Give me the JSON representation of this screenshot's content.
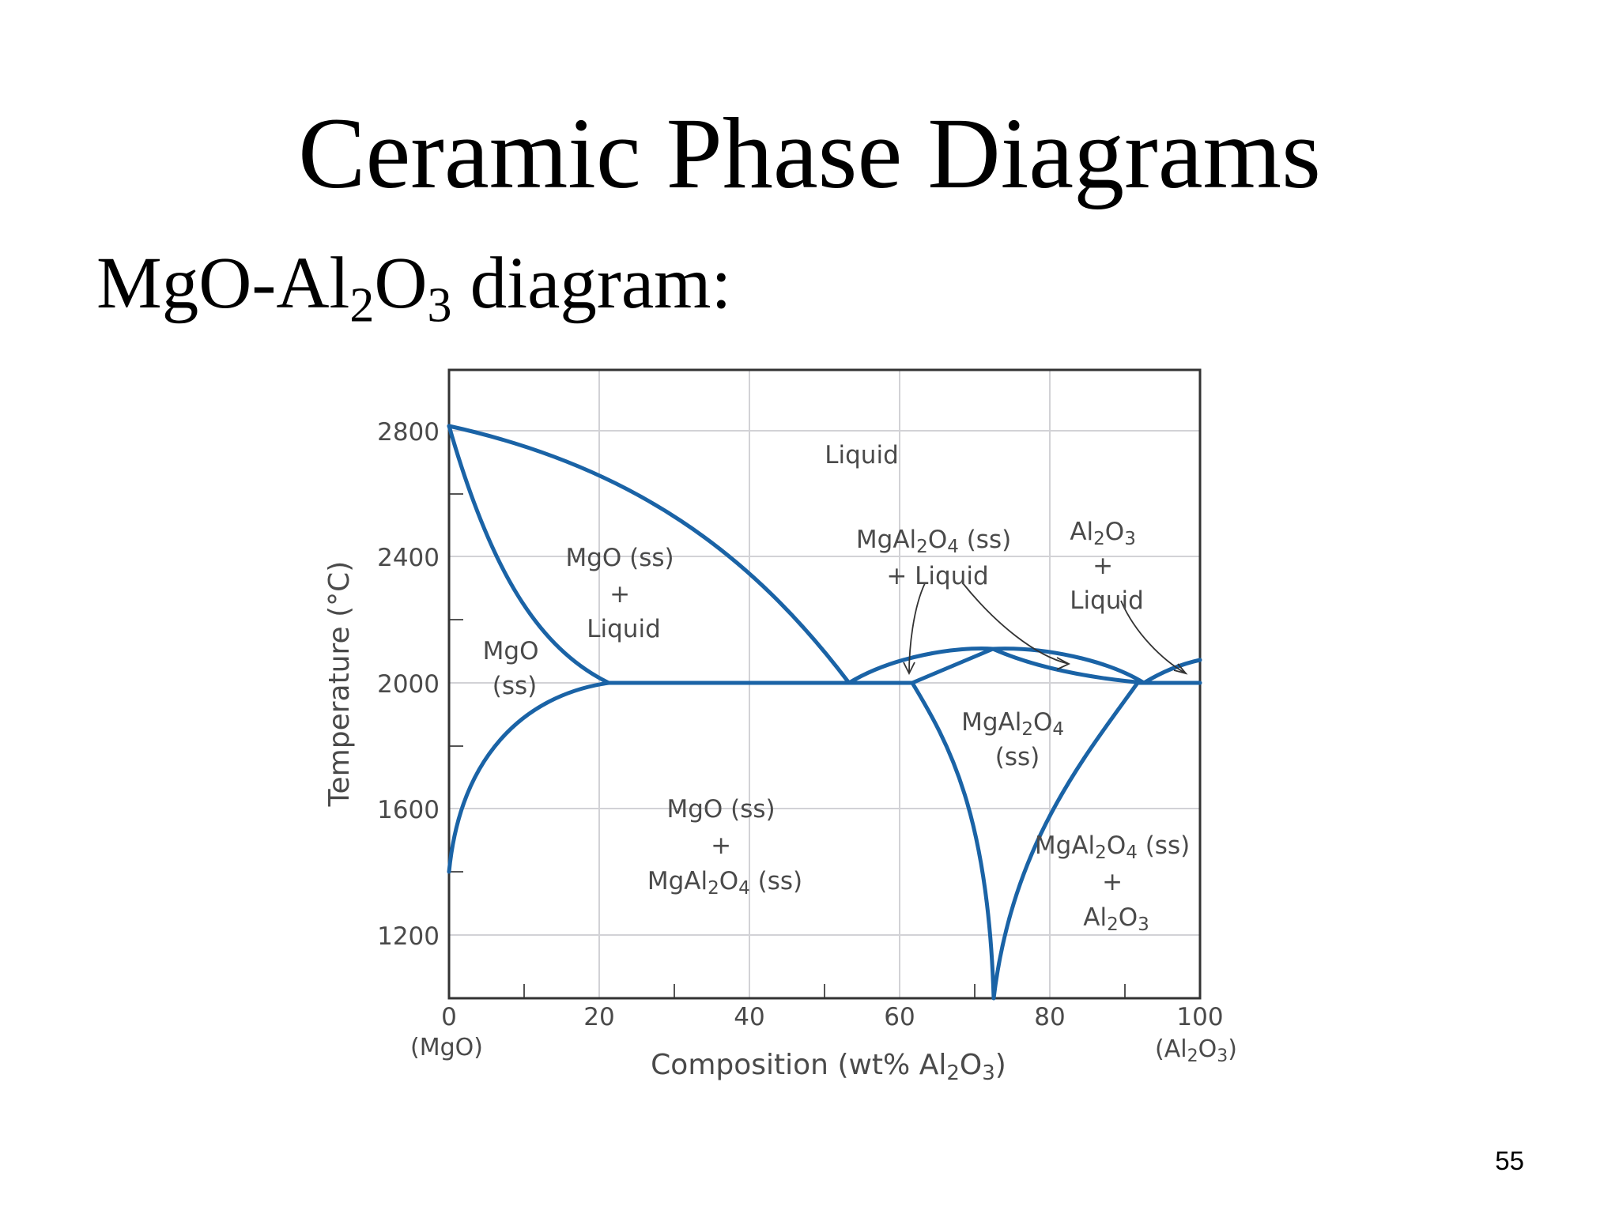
{
  "slide": {
    "title": "Ceramic Phase Diagrams",
    "subtitle": {
      "pre": "MgO-Al",
      "sub1": "2",
      "mid": "O",
      "sub2": "3",
      "post": " diagram:"
    },
    "page_number": "55"
  },
  "diagram": {
    "axes": {
      "x_ticks": [
        "0",
        "20",
        "40",
        "60",
        "80",
        "100"
      ],
      "x_end_labels": {
        "left": "(MgO)",
        "right": {
          "pre": "(Al",
          "s1": "2",
          "mid": "O",
          "s2": "3",
          "post": ")"
        }
      },
      "x_title": {
        "pre": "Composition (wt% Al",
        "s1": "2",
        "mid": "O",
        "s2": "3",
        "post": ")"
      },
      "y_ticks": [
        "2800",
        "2400",
        "2000",
        "1600",
        "1200"
      ],
      "y_title": "Temperature (°C)",
      "x_range": [
        0,
        100
      ],
      "y_range": [
        1000,
        3000
      ]
    },
    "regions": {
      "liquid": "Liquid",
      "mgo_liquid": {
        "line1": "MgO (ss)",
        "line2": "+",
        "line3": "Liquid"
      },
      "mgo_ss": {
        "line1": "MgO",
        "line2": "(ss)"
      },
      "spinel_liquid": {
        "line1_pre": "MgAl",
        "line1_s1": "2",
        "line1_mid": "O",
        "line1_s2": "4",
        "line1_post": " (ss)",
        "line2": "+ Liquid"
      },
      "al2o3_liquid": {
        "line1_pre": "Al",
        "line1_s1": "2",
        "line1_mid": "O",
        "line1_s2": "3",
        "line2": "+",
        "line3": "Liquid"
      },
      "spinel_ss": {
        "line1_pre": "MgAl",
        "line1_s1": "2",
        "line1_mid": "O",
        "line1_s2": "4",
        "line2": "(ss)"
      },
      "mgo_spinel": {
        "line1": "MgO (ss)",
        "line2": "+",
        "line3_pre": "MgAl",
        "line3_s1": "2",
        "line3_mid": "O",
        "line3_s2": "4",
        "line3_post": " (ss)"
      },
      "spinel_al2o3": {
        "line1_pre": "MgAl",
        "line1_s1": "2",
        "line1_mid": "O",
        "line1_s2": "4",
        "line1_post": " (ss)",
        "line2": "+",
        "line3_pre": "Al",
        "line3_s1": "2",
        "line3_mid": "O",
        "line3_s2": "3"
      }
    }
  }
}
